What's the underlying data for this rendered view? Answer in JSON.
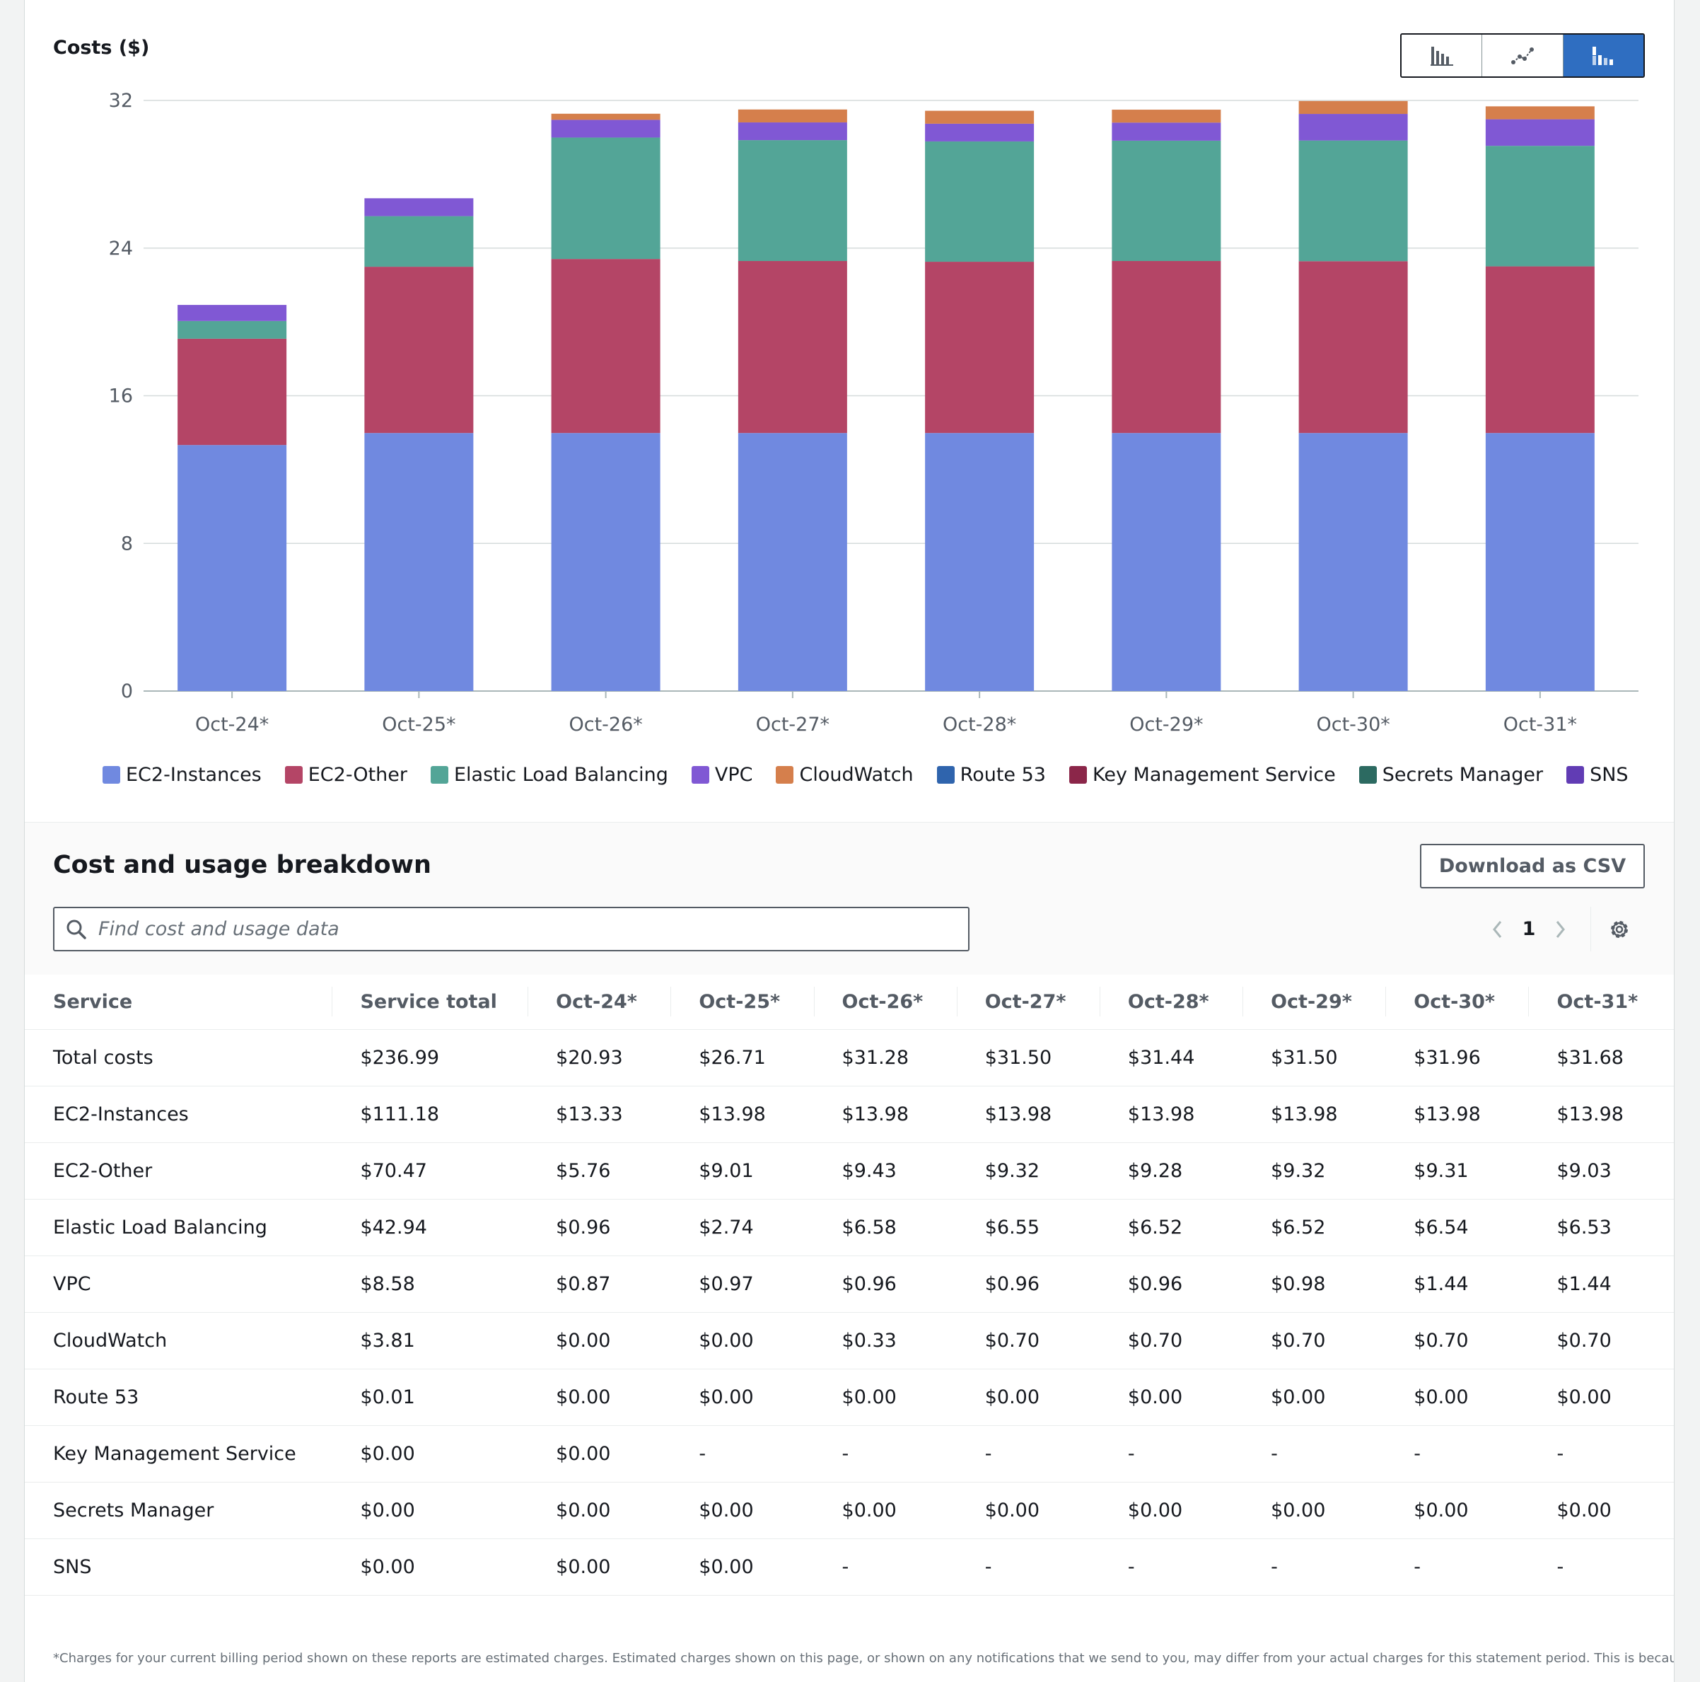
{
  "chart": {
    "title": "Costs ($)",
    "view_modes": [
      {
        "name": "bar-chart-icon",
        "label": "Bar"
      },
      {
        "name": "line-chart-icon",
        "label": "Line"
      },
      {
        "name": "stacked-bar-chart-icon",
        "label": "Stack"
      }
    ],
    "active_view": "stacked-bar-chart-icon"
  },
  "chart_data": {
    "type": "bar",
    "stacked": true,
    "title": "Costs ($)",
    "xlabel": "",
    "ylabel": "Costs ($)",
    "ylim": [
      0,
      32
    ],
    "yticks": [
      0,
      8,
      16,
      24,
      32
    ],
    "grid": true,
    "legend_position": "bottom",
    "categories": [
      "Oct-24*",
      "Oct-25*",
      "Oct-26*",
      "Oct-27*",
      "Oct-28*",
      "Oct-29*",
      "Oct-30*",
      "Oct-31*"
    ],
    "series": [
      {
        "name": "EC2-Instances",
        "color": "#7089e0",
        "values": [
          13.33,
          13.98,
          13.98,
          13.98,
          13.98,
          13.98,
          13.98,
          13.98
        ]
      },
      {
        "name": "EC2-Other",
        "color": "#b44566",
        "values": [
          5.76,
          9.01,
          9.43,
          9.32,
          9.28,
          9.32,
          9.31,
          9.03
        ]
      },
      {
        "name": "Elastic Load Balancing",
        "color": "#53a597",
        "values": [
          0.96,
          2.74,
          6.58,
          6.55,
          6.52,
          6.52,
          6.54,
          6.53
        ]
      },
      {
        "name": "VPC",
        "color": "#8058d4",
        "values": [
          0.87,
          0.97,
          0.96,
          0.96,
          0.96,
          0.98,
          1.44,
          1.44
        ]
      },
      {
        "name": "CloudWatch",
        "color": "#d57f4c",
        "values": [
          0.0,
          0.0,
          0.33,
          0.7,
          0.7,
          0.7,
          0.7,
          0.7
        ]
      },
      {
        "name": "Route 53",
        "color": "#2f64ad",
        "values": [
          0,
          0,
          0,
          0,
          0,
          0,
          0,
          0
        ]
      },
      {
        "name": "Key Management Service",
        "color": "#8b2649",
        "values": [
          0,
          0,
          0,
          0,
          0,
          0,
          0,
          0
        ]
      },
      {
        "name": "Secrets Manager",
        "color": "#2c6a61",
        "values": [
          0,
          0,
          0,
          0,
          0,
          0,
          0,
          0
        ]
      },
      {
        "name": "SNS",
        "color": "#613cb4",
        "values": [
          0,
          0,
          0,
          0,
          0,
          0,
          0,
          0
        ]
      }
    ]
  },
  "breakdown": {
    "title": "Cost and usage breakdown",
    "download_label": "Download as CSV",
    "search_placeholder": "Find cost and usage data",
    "page": "1",
    "columns": [
      "Service",
      "Service total",
      "Oct-24*",
      "Oct-25*",
      "Oct-26*",
      "Oct-27*",
      "Oct-28*",
      "Oct-29*",
      "Oct-30*",
      "Oct-31*"
    ],
    "rows": [
      [
        "Total costs",
        "$236.99",
        "$20.93",
        "$26.71",
        "$31.28",
        "$31.50",
        "$31.44",
        "$31.50",
        "$31.96",
        "$31.68"
      ],
      [
        "EC2-Instances",
        "$111.18",
        "$13.33",
        "$13.98",
        "$13.98",
        "$13.98",
        "$13.98",
        "$13.98",
        "$13.98",
        "$13.98"
      ],
      [
        "EC2-Other",
        "$70.47",
        "$5.76",
        "$9.01",
        "$9.43",
        "$9.32",
        "$9.28",
        "$9.32",
        "$9.31",
        "$9.03"
      ],
      [
        "Elastic Load Balancing",
        "$42.94",
        "$0.96",
        "$2.74",
        "$6.58",
        "$6.55",
        "$6.52",
        "$6.52",
        "$6.54",
        "$6.53"
      ],
      [
        "VPC",
        "$8.58",
        "$0.87",
        "$0.97",
        "$0.96",
        "$0.96",
        "$0.96",
        "$0.98",
        "$1.44",
        "$1.44"
      ],
      [
        "CloudWatch",
        "$3.81",
        "$0.00",
        "$0.00",
        "$0.33",
        "$0.70",
        "$0.70",
        "$0.70",
        "$0.70",
        "$0.70"
      ],
      [
        "Route 53",
        "$0.01",
        "$0.00",
        "$0.00",
        "$0.00",
        "$0.00",
        "$0.00",
        "$0.00",
        "$0.00",
        "$0.00"
      ],
      [
        "Key Management Service",
        "$0.00",
        "$0.00",
        "-",
        "-",
        "-",
        "-",
        "-",
        "-",
        "-"
      ],
      [
        "Secrets Manager",
        "$0.00",
        "$0.00",
        "$0.00",
        "$0.00",
        "$0.00",
        "$0.00",
        "$0.00",
        "$0.00",
        "$0.00"
      ],
      [
        "SNS",
        "$0.00",
        "$0.00",
        "$0.00",
        "-",
        "-",
        "-",
        "-",
        "-",
        "-"
      ]
    ]
  },
  "footnote": "*Charges for your current billing period shown on these reports are estimated charges. Estimated charges shown on this page, or shown on any notifications that we send to you, may differ from your actual charges for this statement period. This is because"
}
